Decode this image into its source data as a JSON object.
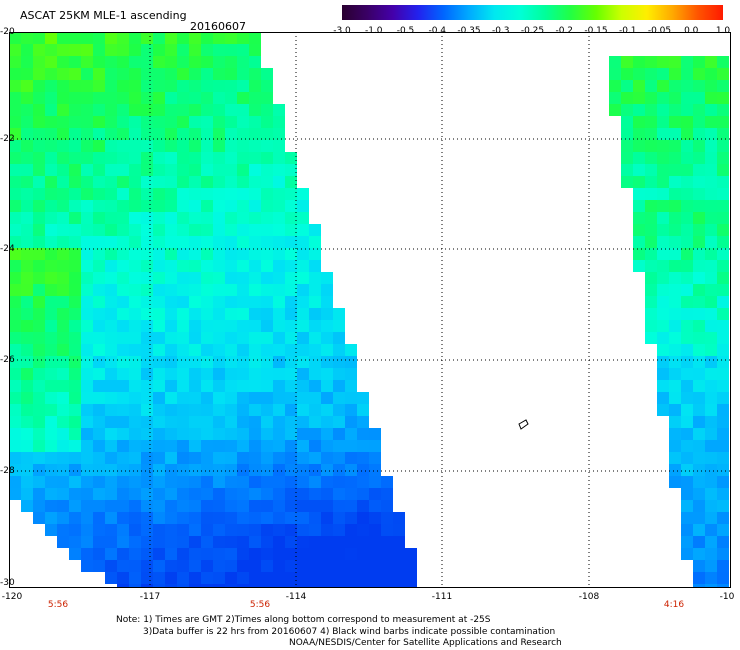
{
  "header": {
    "title": "ASCAT 25KM MLE-1 ascending",
    "date": "20160607"
  },
  "colorbar": {
    "ticks": [
      "-3.0",
      "-1.0",
      "-0.5",
      "-0.4",
      "-0.35",
      "-0.3",
      "-0.25",
      "-0.2",
      "-0.15",
      "-0.1",
      "-0.05",
      "0.0",
      "1.0"
    ],
    "colors": [
      "#2a0030",
      "#3a0066",
      "#4400aa",
      "#2222ee",
      "#0066ff",
      "#00aaff",
      "#00e8f0",
      "#00ffd8",
      "#00ff9a",
      "#22ff44",
      "#66ff00",
      "#ccff00",
      "#ffee00",
      "#ffaa00",
      "#ff5500",
      "#ff1a00"
    ]
  },
  "axes": {
    "lat_labels": [
      "-20",
      "-22",
      "-24",
      "-26",
      "-28",
      "-30"
    ],
    "lon_labels": [
      "-120",
      "-117",
      "-114",
      "-111",
      "-108",
      "-10"
    ],
    "grid": true
  },
  "times": [
    "5:56",
    "5:56",
    "4:16"
  ],
  "notes": {
    "line1": "Note: 1) Times are GMT 2)Times along bottom correspond to measurement at -25S",
    "line2": "3)Data buffer is 22 hrs from 20160607 4) Black wind barbs indicate possible contamination",
    "line3": "NOAA/NESDIS/Center for Satellite Applications and Research"
  }
}
